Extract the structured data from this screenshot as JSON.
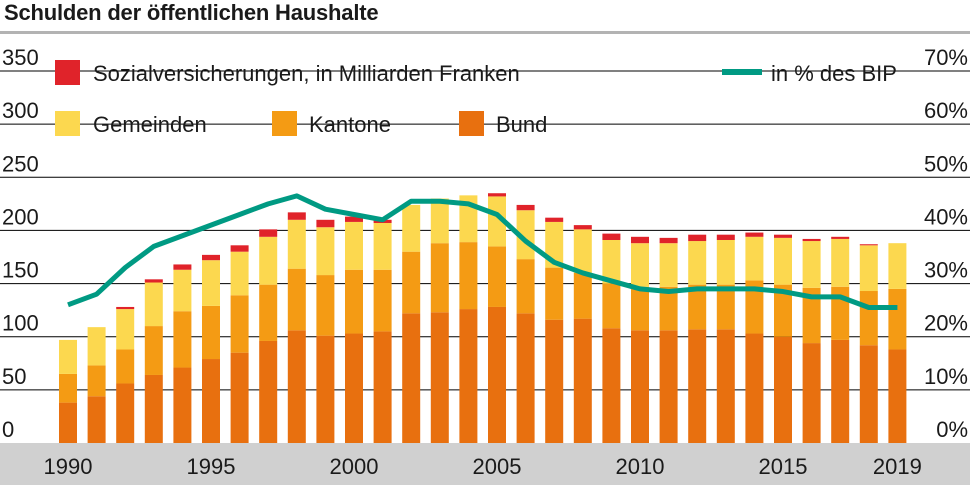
{
  "title": "Schulden der öffentlichen Haushalte",
  "legend": {
    "sozial": "Sozialversicherungen, in Milliarden Franken",
    "gemeinden": "Gemeinden",
    "kantone": "Kantone",
    "bund": "Bund",
    "bip": "in % des BIP"
  },
  "colors": {
    "bund": "#e8700f",
    "kantone": "#f49b14",
    "gemeinden": "#fcd84f",
    "sozial": "#e0232a",
    "bip": "#009a83",
    "grid": "#000000",
    "axis_band": "#d0d0d0"
  },
  "chart_data": {
    "type": "bar",
    "title": "Schulden der öffentlichen Haushalte",
    "stacked": true,
    "left_axis": {
      "min": 0,
      "max": 350,
      "ticks": [
        "0",
        "50",
        "100",
        "150",
        "200",
        "250",
        "300",
        "350"
      ]
    },
    "right_axis": {
      "min": 0,
      "max": 70,
      "ticks": [
        "0%",
        "10%",
        "20%",
        "30%",
        "40%",
        "50%",
        "60%",
        "70%"
      ]
    },
    "x_tick_labels": [
      "1990",
      "1995",
      "2000",
      "2005",
      "2010",
      "2015",
      "2019"
    ],
    "x_tick_years": [
      1990,
      1995,
      2000,
      2005,
      2010,
      2015,
      2019
    ],
    "legend_position": "top",
    "grid": true,
    "categories": [
      1990,
      1991,
      1992,
      1993,
      1994,
      1995,
      1996,
      1997,
      1998,
      1999,
      2000,
      2001,
      2002,
      2003,
      2004,
      2005,
      2006,
      2007,
      2008,
      2009,
      2010,
      2011,
      2012,
      2013,
      2014,
      2015,
      2016,
      2017,
      2018,
      2019
    ],
    "series": [
      {
        "name": "Bund",
        "key": "bund",
        "axis": "left",
        "values": [
          38,
          44,
          56,
          64,
          71,
          79,
          85,
          96,
          106,
          101,
          103,
          105,
          122,
          123,
          126,
          128,
          122,
          116,
          117,
          108,
          106,
          106,
          107,
          107,
          103,
          100,
          94,
          97,
          92,
          88
        ]
      },
      {
        "name": "Kantone",
        "key": "kantone",
        "axis": "left",
        "values": [
          27,
          29,
          32,
          46,
          53,
          50,
          54,
          53,
          58,
          57,
          60,
          58,
          58,
          65,
          63,
          57,
          51,
          49,
          43,
          42,
          41,
          41,
          42,
          42,
          50,
          49,
          52,
          50,
          51,
          57
        ]
      },
      {
        "name": "Gemeinden",
        "key": "gemeinden",
        "axis": "left",
        "values": [
          32,
          36,
          38,
          41,
          39,
          43,
          41,
          45,
          46,
          45,
          45,
          44,
          44,
          42,
          44,
          47,
          46,
          43,
          41,
          41,
          41,
          41,
          41,
          42,
          41,
          44,
          44,
          45,
          43,
          43
        ]
      },
      {
        "name": "Sozialversicherungen, in Milliarden Franken",
        "key": "sozial",
        "axis": "left",
        "values": [
          0,
          0,
          2,
          3,
          5,
          5,
          6,
          7,
          7,
          7,
          5,
          3,
          0,
          0,
          0,
          3,
          5,
          4,
          4,
          6,
          6,
          5,
          6,
          5,
          4,
          3,
          2,
          2,
          1,
          0
        ]
      },
      {
        "name": "in % des BIP",
        "key": "bip",
        "axis": "right",
        "type": "line",
        "values": [
          26,
          28,
          33,
          37,
          39,
          41,
          43,
          45,
          46.5,
          44,
          43,
          42,
          45.5,
          45.5,
          45,
          43,
          38,
          34,
          32,
          30.5,
          29,
          28.5,
          29,
          29,
          29,
          28.5,
          27.5,
          27.5,
          25.5,
          25.5
        ]
      }
    ]
  }
}
